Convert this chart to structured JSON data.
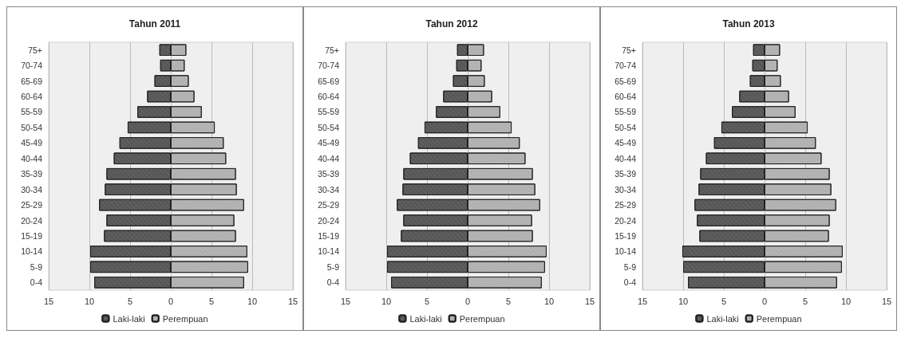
{
  "chart_data": [
    {
      "type": "bar",
      "orientation": "horizontal",
      "stacked": true,
      "title": "Tahun 2011",
      "categories": [
        "75+",
        "70-74",
        "65-69",
        "60-64",
        "55-59",
        "50-54",
        "45-49",
        "40-44",
        "35-39",
        "30-34",
        "25-29",
        "20-24",
        "15-19",
        "10-14",
        "5-9",
        "0-4"
      ],
      "series": [
        {
          "name": "Laki-laki",
          "color": "#555555",
          "values": [
            -1.4,
            -1.3,
            -2.0,
            -2.9,
            -4.1,
            -5.3,
            -6.3,
            -7.0,
            -7.9,
            -8.1,
            -8.8,
            -7.9,
            -8.2,
            -9.9,
            -9.9,
            -9.4
          ]
        },
        {
          "name": "Perempuan",
          "color": "#b0b0b0",
          "values": [
            1.9,
            1.7,
            2.2,
            2.9,
            3.8,
            5.4,
            6.5,
            6.8,
            8.0,
            8.1,
            9.0,
            7.8,
            8.0,
            9.4,
            9.5,
            9.0
          ]
        }
      ],
      "xlim": [
        -15,
        15
      ],
      "xticks": [
        {
          "value": -15,
          "label": "15"
        },
        {
          "value": -10,
          "label": "10"
        },
        {
          "value": -5,
          "label": "5"
        },
        0,
        5,
        10,
        15
      ],
      "grid": "x",
      "legend": "bottom"
    },
    {
      "type": "bar",
      "orientation": "horizontal",
      "stacked": true,
      "title": "Tahun 2012",
      "categories": [
        "75+",
        "70-74",
        "65-69",
        "60-64",
        "55-59",
        "50-54",
        "45-49",
        "40-44",
        "35-39",
        "30-34",
        "25-29",
        "20-24",
        "15-19",
        "10-14",
        "5-9",
        "0-4"
      ],
      "series": [
        {
          "name": "Laki-laki",
          "color": "#555555",
          "values": [
            -1.3,
            -1.4,
            -1.8,
            -3.0,
            -3.9,
            -5.3,
            -6.1,
            -7.1,
            -7.9,
            -8.0,
            -8.7,
            -7.9,
            -8.2,
            -9.9,
            -9.9,
            -9.4
          ]
        },
        {
          "name": "Perempuan",
          "color": "#b0b0b0",
          "values": [
            2.0,
            1.7,
            2.1,
            3.0,
            4.0,
            5.4,
            6.4,
            7.1,
            8.0,
            8.3,
            8.9,
            7.9,
            8.0,
            9.7,
            9.5,
            9.1
          ]
        }
      ],
      "xlim": [
        -15,
        15
      ],
      "xticks": [
        {
          "value": -15,
          "label": "15"
        },
        {
          "value": -10,
          "label": "10"
        },
        {
          "value": -5,
          "label": "5"
        },
        0,
        5,
        10,
        15
      ],
      "grid": "x",
      "legend": "bottom"
    },
    {
      "type": "bar",
      "orientation": "horizontal",
      "stacked": true,
      "title": "Tahun 2013",
      "categories": [
        "75+",
        "70-74",
        "65-69",
        "60-64",
        "55-59",
        "50-54",
        "45-49",
        "40-44",
        "35-39",
        "30-34",
        "25-29",
        "20-24",
        "15-19",
        "10-14",
        "5-9",
        "0-4"
      ],
      "series": [
        {
          "name": "Laki-laki",
          "color": "#555555",
          "values": [
            -1.4,
            -1.5,
            -1.8,
            -3.1,
            -4.0,
            -5.3,
            -6.2,
            -7.2,
            -7.9,
            -8.1,
            -8.6,
            -8.3,
            -8.0,
            -10.1,
            -10.0,
            -9.4
          ]
        },
        {
          "name": "Perempuan",
          "color": "#b0b0b0",
          "values": [
            1.9,
            1.6,
            2.0,
            3.0,
            3.8,
            5.3,
            6.3,
            7.0,
            8.0,
            8.2,
            8.8,
            8.0,
            7.9,
            9.6,
            9.5,
            8.9
          ]
        }
      ],
      "xlim": [
        -15,
        15
      ],
      "xticks": [
        {
          "value": -15,
          "label": "15"
        },
        {
          "value": -10,
          "label": "10"
        },
        {
          "value": -5,
          "label": "5"
        },
        0,
        5,
        10,
        15
      ],
      "grid": "x",
      "legend": "bottom"
    }
  ]
}
